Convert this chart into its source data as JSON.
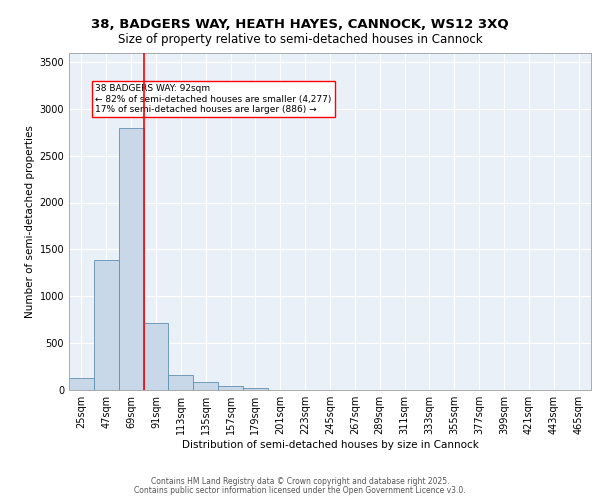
{
  "title": "38, BADGERS WAY, HEATH HAYES, CANNOCK, WS12 3XQ",
  "subtitle": "Size of property relative to semi-detached houses in Cannock",
  "xlabel": "Distribution of semi-detached houses by size in Cannock",
  "ylabel": "Number of semi-detached properties",
  "bar_color": "#c8d8e8",
  "bar_edge_color": "#6090b0",
  "categories": [
    "25sqm",
    "47sqm",
    "69sqm",
    "91sqm",
    "113sqm",
    "135sqm",
    "157sqm",
    "179sqm",
    "201sqm",
    "223sqm",
    "245sqm",
    "267sqm",
    "289sqm",
    "311sqm",
    "333sqm",
    "355sqm",
    "377sqm",
    "399sqm",
    "421sqm",
    "443sqm",
    "465sqm"
  ],
  "values": [
    130,
    1390,
    2800,
    710,
    155,
    90,
    45,
    20,
    0,
    0,
    0,
    0,
    0,
    0,
    0,
    0,
    0,
    0,
    0,
    0,
    0
  ],
  "property_line_x": 2.5,
  "annotation_text": "38 BADGERS WAY: 92sqm\n← 82% of semi-detached houses are smaller (4,277)\n17% of semi-detached houses are larger (886) →",
  "ylim": [
    0,
    3600
  ],
  "yticks": [
    0,
    500,
    1000,
    1500,
    2000,
    2500,
    3000,
    3500
  ],
  "footer_line1": "Contains HM Land Registry data © Crown copyright and database right 2025.",
  "footer_line2": "Contains public sector information licensed under the Open Government Licence v3.0.",
  "plot_background": "#eaf0f8",
  "title_fontsize": 9.5,
  "subtitle_fontsize": 8.5,
  "axis_label_fontsize": 7.5,
  "tick_fontsize": 7.0,
  "annotation_fontsize": 6.5,
  "footer_fontsize": 5.5
}
